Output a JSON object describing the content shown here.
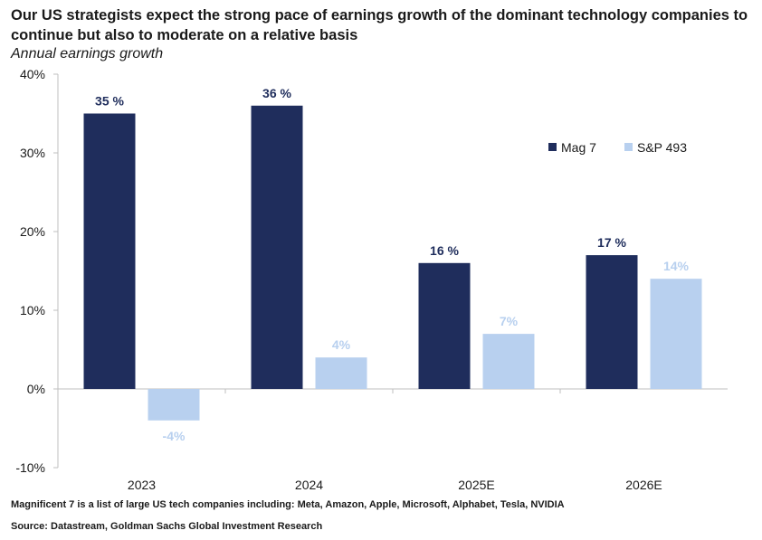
{
  "title": "Our US strategists expect the strong pace of earnings growth of the dominant technology companies to continue but also to moderate on a relative basis",
  "subtitle": "Annual earnings growth",
  "footnote": "Magnificent 7 is a list of large US tech companies including: Meta, Amazon, Apple, Microsoft, Alphabet, Tesla, NVIDIA",
  "source": "Source: Datastream, Goldman Sachs Global Investment Research",
  "colors": {
    "mag7": "#1f2d5c",
    "sp493": "#b8d0ef",
    "axis": "#bfbfbf",
    "text": "#1a1a1a"
  },
  "chart_data": {
    "type": "bar",
    "categories": [
      "2023",
      "2024",
      "2025E",
      "2026E"
    ],
    "series": [
      {
        "name": "Mag 7",
        "values": [
          35,
          36,
          16,
          17
        ],
        "labels": [
          "35 %",
          "36 %",
          "16 %",
          "17 %"
        ]
      },
      {
        "name": "S&P 493",
        "values": [
          -4,
          4,
          7,
          14
        ],
        "labels": [
          "-4%",
          "4%",
          "7%",
          "14%"
        ]
      }
    ],
    "yticks": [
      -10,
      0,
      10,
      20,
      30,
      40
    ],
    "ytick_labels": [
      "-10%",
      "0%",
      "10%",
      "20%",
      "30%",
      "40%"
    ],
    "ylim": [
      -10,
      40
    ],
    "grid": false,
    "legend_position": "top-right"
  }
}
